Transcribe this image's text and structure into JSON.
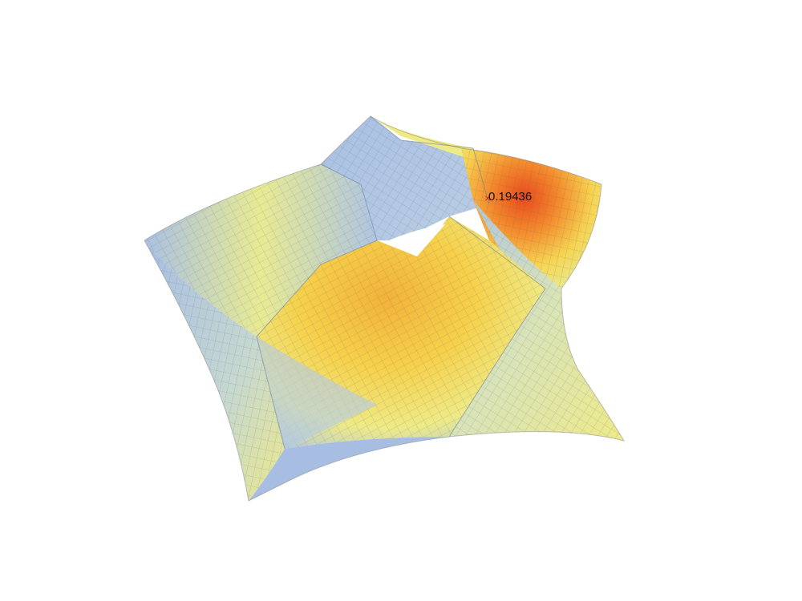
{
  "annotation": {
    "max_value_label": "0.19436",
    "marker_symbol": "×"
  },
  "colormap": {
    "low": "#a8bfe2",
    "mid_low": "#c9dcc9",
    "mid": "#f0ec8a",
    "mid_high": "#f5c64a",
    "high": "#e84a1c"
  }
}
